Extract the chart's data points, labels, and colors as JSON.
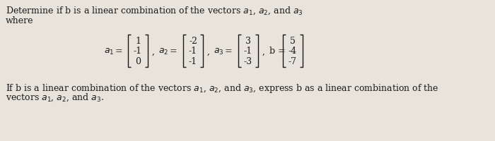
{
  "background_color": "#e8e4dc",
  "text_color": "#1a1a1a",
  "font_size": 9.0,
  "a1": [
    1,
    -1,
    0
  ],
  "a2": [
    -2,
    -1,
    -1
  ],
  "a3": [
    3,
    -1,
    -3
  ],
  "b": [
    5,
    -4,
    -7
  ]
}
